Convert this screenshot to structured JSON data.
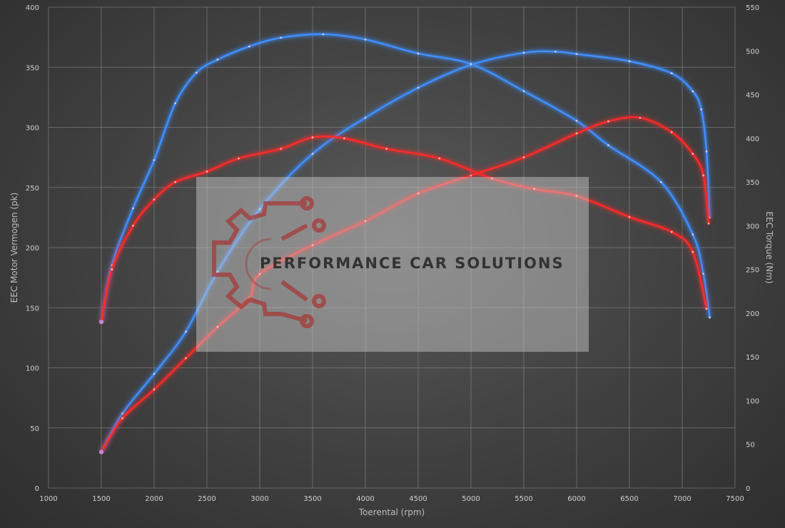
{
  "chart_data": {
    "type": "line",
    "title": "",
    "xlabel": "Toerental (rpm)",
    "ylabel_left": "EEC Motor Vermogen (pk)",
    "ylabel_right": "EEC Torque (Nm)",
    "xlim": [
      1000,
      7500
    ],
    "ylim_left": [
      0,
      400
    ],
    "ylim_right": [
      0,
      550
    ],
    "x_ticks": [
      1000,
      1500,
      2000,
      2500,
      3000,
      3500,
      4000,
      4500,
      5000,
      5500,
      6000,
      6500,
      7000,
      7500
    ],
    "y_left_ticks": [
      0,
      50,
      100,
      150,
      200,
      250,
      300,
      350,
      400
    ],
    "y_right_ticks": [
      0,
      50,
      100,
      150,
      200,
      250,
      300,
      350,
      400,
      450,
      500,
      550
    ],
    "grid": true,
    "series": [
      {
        "name": "",
        "axis": "left",
        "color": "#3f8fff",
        "points": [
          [
            1500,
            30
          ],
          [
            1700,
            62
          ],
          [
            2000,
            95
          ],
          [
            2300,
            130
          ],
          [
            2600,
            180
          ],
          [
            3000,
            232
          ],
          [
            3500,
            278
          ],
          [
            4000,
            308
          ],
          [
            4500,
            333
          ],
          [
            5000,
            352
          ],
          [
            5500,
            362
          ],
          [
            5800,
            363
          ],
          [
            6000,
            361
          ],
          [
            6500,
            355
          ],
          [
            6900,
            345
          ],
          [
            7100,
            330
          ],
          [
            7180,
            315
          ],
          [
            7230,
            280
          ],
          [
            7260,
            225
          ]
        ]
      },
      {
        "name": "",
        "axis": "right",
        "color": "#3f8fff",
        "points": [
          [
            1500,
            190
          ],
          [
            1600,
            255
          ],
          [
            1800,
            320
          ],
          [
            2000,
            375
          ],
          [
            2200,
            440
          ],
          [
            2400,
            475
          ],
          [
            2600,
            490
          ],
          [
            2900,
            505
          ],
          [
            3200,
            515
          ],
          [
            3600,
            519
          ],
          [
            4000,
            513
          ],
          [
            4500,
            497
          ],
          [
            5000,
            485
          ],
          [
            5500,
            454
          ],
          [
            6000,
            420
          ],
          [
            6300,
            392
          ],
          [
            6800,
            350
          ],
          [
            7100,
            290
          ],
          [
            7200,
            245
          ],
          [
            7260,
            195
          ]
        ]
      },
      {
        "name": "",
        "axis": "left",
        "color": "#ff2a2a",
        "points": [
          [
            1500,
            30
          ],
          [
            1700,
            58
          ],
          [
            2000,
            82
          ],
          [
            2300,
            108
          ],
          [
            2600,
            134
          ],
          [
            2900,
            158
          ],
          [
            3000,
            178
          ],
          [
            3500,
            202
          ],
          [
            4000,
            222
          ],
          [
            4500,
            245
          ],
          [
            5000,
            260
          ],
          [
            5500,
            275
          ],
          [
            6000,
            295
          ],
          [
            6300,
            305
          ],
          [
            6600,
            308
          ],
          [
            6900,
            296
          ],
          [
            7100,
            278
          ],
          [
            7200,
            260
          ],
          [
            7250,
            220
          ]
        ]
      },
      {
        "name": "",
        "axis": "right",
        "color": "#ff2a2a",
        "points": [
          [
            1500,
            190
          ],
          [
            1600,
            250
          ],
          [
            1800,
            300
          ],
          [
            2000,
            330
          ],
          [
            2200,
            350
          ],
          [
            2500,
            362
          ],
          [
            2800,
            377
          ],
          [
            3200,
            388
          ],
          [
            3500,
            401
          ],
          [
            3800,
            400
          ],
          [
            4200,
            388
          ],
          [
            4700,
            377
          ],
          [
            5200,
            354
          ],
          [
            5600,
            342
          ],
          [
            6000,
            334
          ],
          [
            6500,
            310
          ],
          [
            6900,
            293
          ],
          [
            7100,
            270
          ],
          [
            7230,
            205
          ]
        ]
      }
    ]
  },
  "watermark": {
    "text": "PERFORMANCE CAR SOLUTIONS"
  }
}
